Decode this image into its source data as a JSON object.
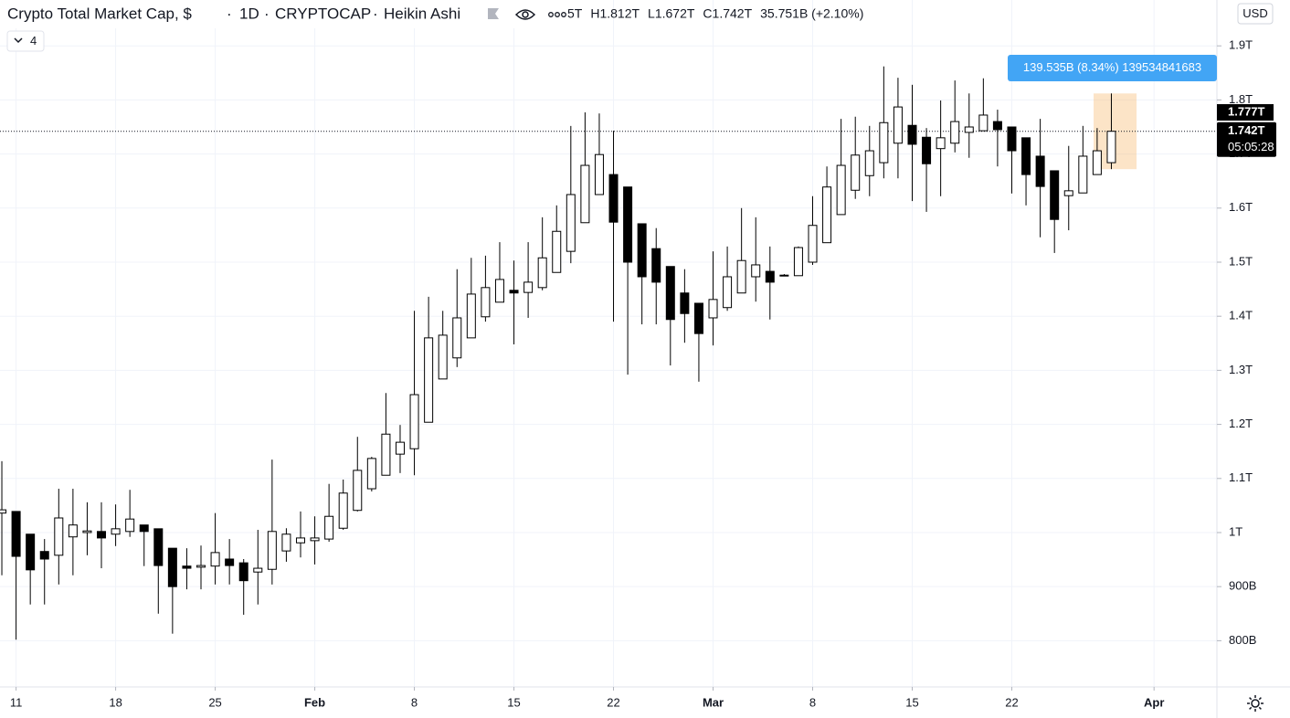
{
  "chart_data": {
    "type": "candlestick",
    "title": "Crypto Total Market Cap, $",
    "interval": "1D",
    "exchange": "CRYPTOCAP",
    "chart_style": "Heikin Ashi",
    "legend_values": [
      "5T",
      "H1.812T",
      "L1.672T",
      "C1.742T",
      "35.751B (+2.10%)"
    ],
    "indicator_count": 4,
    "currency": "USD",
    "open": [
      1.036,
      1.039,
      0.997,
      0.965,
      0.958,
      0.992,
      1.0,
      1.002,
      0.997,
      1.002,
      1.014,
      1.007,
      0.971,
      0.938,
      0.936,
      0.938,
      0.951,
      0.944,
      0.927,
      0.932,
      0.966,
      0.981,
      0.985,
      0.988,
      1.008,
      1.041,
      1.081,
      1.106,
      1.145,
      1.155,
      1.204,
      1.284,
      1.323,
      1.36,
      1.399,
      1.426,
      1.448,
      1.444,
      1.453,
      1.481,
      1.52,
      1.573,
      1.625,
      1.662,
      1.639,
      1.571,
      1.525,
      1.492,
      1.443,
      1.424,
      1.397,
      1.416,
      1.443,
      1.473,
      1.483,
      1.475,
      1.475,
      1.5,
      1.536,
      1.588,
      1.633,
      1.66,
      1.684,
      1.72,
      1.753,
      1.731,
      1.71,
      1.72,
      1.74,
      1.743,
      1.76,
      1.75,
      1.73,
      1.696,
      1.669,
      1.623,
      1.628,
      1.662,
      1.684
    ],
    "high": [
      1.132,
      1.039,
      0.997,
      0.988,
      1.081,
      1.081,
      1.056,
      1.056,
      1.052,
      1.079,
      1.014,
      1.007,
      0.971,
      0.971,
      0.976,
      1.036,
      0.988,
      0.951,
      1.005,
      1.135,
      1.008,
      1.039,
      1.03,
      1.09,
      1.098,
      1.177,
      1.14,
      1.258,
      1.199,
      1.41,
      1.436,
      1.41,
      1.487,
      1.508,
      1.512,
      1.537,
      1.503,
      1.537,
      1.583,
      1.605,
      1.752,
      1.777,
      1.775,
      1.743,
      1.639,
      1.571,
      1.563,
      1.492,
      1.487,
      1.424,
      1.52,
      1.529,
      1.6,
      1.583,
      1.529,
      1.478,
      1.529,
      1.622,
      1.677,
      1.765,
      1.769,
      1.752,
      1.862,
      1.841,
      1.828,
      1.748,
      1.799,
      1.836,
      1.812,
      1.84,
      1.782,
      1.75,
      1.73,
      1.765,
      1.669,
      1.715,
      1.752,
      1.748,
      1.812
    ],
    "low": [
      0.921,
      0.802,
      0.867,
      0.867,
      0.904,
      0.921,
      0.958,
      0.934,
      0.975,
      0.992,
      0.938,
      0.85,
      0.813,
      0.895,
      0.895,
      0.904,
      0.904,
      0.848,
      0.867,
      0.904,
      0.946,
      0.954,
      0.941,
      0.983,
      1.005,
      1.039,
      1.076,
      1.106,
      1.11,
      1.106,
      1.204,
      1.284,
      1.306,
      1.36,
      1.39,
      1.426,
      1.348,
      1.397,
      1.448,
      1.481,
      1.498,
      1.573,
      1.625,
      1.39,
      1.292,
      1.385,
      1.385,
      1.309,
      1.351,
      1.279,
      1.346,
      1.41,
      1.443,
      1.427,
      1.394,
      1.475,
      1.475,
      1.495,
      1.536,
      1.588,
      1.617,
      1.622,
      1.655,
      1.655,
      1.613,
      1.593,
      1.622,
      1.703,
      1.693,
      1.743,
      1.677,
      1.627,
      1.605,
      1.546,
      1.517,
      1.559,
      1.628,
      1.662,
      1.672
    ],
    "close": [
      1.042,
      0.956,
      0.931,
      0.951,
      1.027,
      1.014,
      1.003,
      0.99,
      1.007,
      1.025,
      1.002,
      0.939,
      0.9,
      0.934,
      0.939,
      0.963,
      0.939,
      0.911,
      0.934,
      1.002,
      0.997,
      0.99,
      0.99,
      1.03,
      1.073,
      1.115,
      1.137,
      1.182,
      1.167,
      1.255,
      1.36,
      1.365,
      1.397,
      1.441,
      1.453,
      1.468,
      1.443,
      1.463,
      1.508,
      1.557,
      1.625,
      1.679,
      1.699,
      1.574,
      1.5,
      1.473,
      1.463,
      1.394,
      1.405,
      1.368,
      1.431,
      1.473,
      1.503,
      1.495,
      1.463,
      1.476,
      1.527,
      1.568,
      1.639,
      1.679,
      1.698,
      1.706,
      1.758,
      1.787,
      1.718,
      1.682,
      1.73,
      1.76,
      1.75,
      1.772,
      1.745,
      1.706,
      1.662,
      1.64,
      1.579,
      1.632,
      1.696,
      1.706,
      1.742
    ],
    "up_color": "#ffffff",
    "down_color": "#000000",
    "wick_color": "#000000",
    "xlim": [
      -0.13,
      85.42
    ],
    "xticks": [
      {
        "value": 1,
        "label": "11"
      },
      {
        "value": 8,
        "label": "18"
      },
      {
        "value": 15,
        "label": "25"
      },
      {
        "value": 22,
        "label": "Feb"
      },
      {
        "value": 29,
        "label": "8"
      },
      {
        "value": 36,
        "label": "15"
      },
      {
        "value": 43,
        "label": "22"
      },
      {
        "value": 50,
        "label": "Mar"
      },
      {
        "value": 57,
        "label": "8"
      },
      {
        "value": 64,
        "label": "15"
      },
      {
        "value": 71,
        "label": "22"
      },
      {
        "value": 81,
        "label": "Apr"
      }
    ],
    "ylim": [
      0.7145,
      1.9848
    ],
    "yticks": [
      {
        "value": 0.8,
        "label": "800B"
      },
      {
        "value": 0.9,
        "label": "900B"
      },
      {
        "value": 1,
        "label": "1T"
      },
      {
        "value": 1.1,
        "label": "1.1T"
      },
      {
        "value": 1.2,
        "label": "1.2T"
      },
      {
        "value": 1.3,
        "label": "1.3T"
      },
      {
        "value": 1.4,
        "label": "1.4T"
      },
      {
        "value": 1.5,
        "label": "1.5T"
      },
      {
        "value": 1.6,
        "label": "1.6T"
      },
      {
        "value": 1.7,
        "label": "1.7T"
      },
      {
        "value": 1.8,
        "label": "1.8T"
      },
      {
        "value": 1.9,
        "label": "1.9T"
      }
    ],
    "grid": true,
    "price_labels": [
      {
        "value": 1.777,
        "label": "1.777T"
      },
      {
        "value": 1.742,
        "label": "1.742T"
      }
    ],
    "countdown": "05:05:28",
    "measure": {
      "x": [
        76.75,
        79.77
      ],
      "y": [
        1.672,
        1.812
      ],
      "label": "139.535B (8.34%) 139534841683",
      "color": "#f7b35f"
    }
  }
}
